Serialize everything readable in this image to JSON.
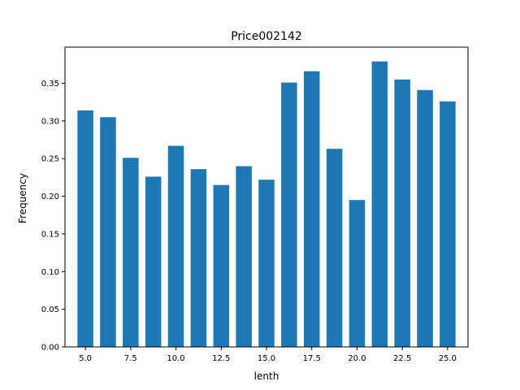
{
  "chart_data": {
    "type": "bar",
    "title": "Price002142",
    "xlabel": "lenth",
    "ylabel": "Frequency",
    "x": [
      5,
      6.25,
      7.5,
      8.75,
      10,
      11.25,
      12.5,
      13.75,
      15,
      16.25,
      17.5,
      18.75,
      20,
      21.25,
      22.5,
      23.75,
      25
    ],
    "values": [
      0.314,
      0.305,
      0.251,
      0.226,
      0.267,
      0.236,
      0.215,
      0.24,
      0.222,
      0.351,
      0.366,
      0.263,
      0.195,
      0.379,
      0.355,
      0.341,
      0.326
    ],
    "xlim": [
      3.875,
      26.125
    ],
    "ylim": [
      0,
      0.398
    ],
    "xticks": [
      "5.0",
      "7.5",
      "10.0",
      "12.5",
      "15.0",
      "17.5",
      "20.0",
      "22.5",
      "25.0"
    ],
    "yticks": [
      "0.00",
      "0.05",
      "0.10",
      "0.15",
      "0.20",
      "0.25",
      "0.30",
      "0.35"
    ],
    "bar_color": "#1f77b4",
    "grid": false,
    "legend": "none"
  }
}
